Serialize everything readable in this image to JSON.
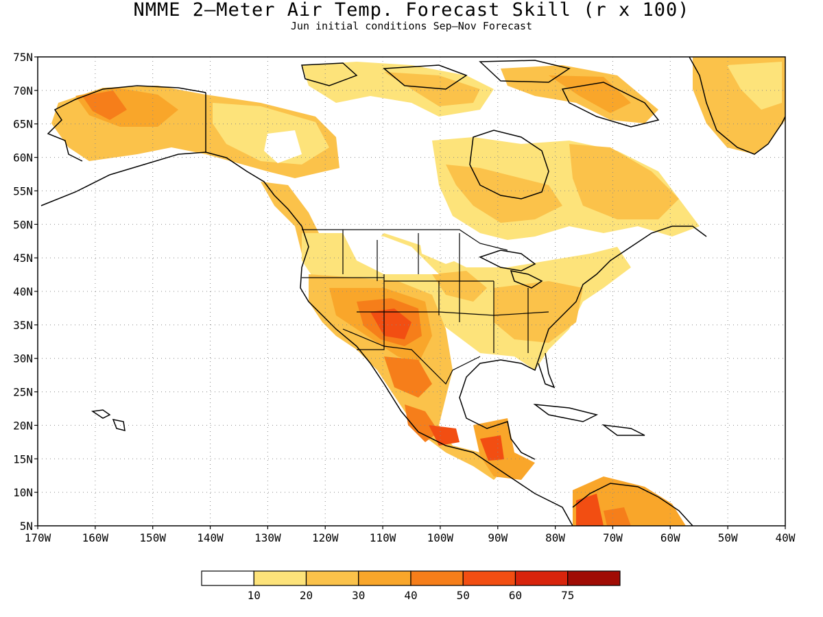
{
  "title": "NMME 2—Meter Air Temp. Forecast Skill (r x 100)",
  "subtitle": "Jun initial conditions  Sep—Nov Forecast",
  "axes": {
    "lat_labels": [
      "75N",
      "70N",
      "65N",
      "60N",
      "55N",
      "50N",
      "45N",
      "40N",
      "35N",
      "30N",
      "25N",
      "20N",
      "15N",
      "10N",
      "5N"
    ],
    "lon_labels": [
      "170W",
      "160W",
      "150W",
      "140W",
      "130W",
      "120W",
      "110W",
      "100W",
      "90W",
      "80W",
      "70W",
      "60W",
      "50W",
      "40W"
    ],
    "lat_range": [
      5,
      75
    ],
    "lon_range": [
      -170,
      -40
    ],
    "grid": "dotted"
  },
  "colorbar": {
    "levels": [
      "10",
      "20",
      "30",
      "40",
      "50",
      "60",
      "75"
    ],
    "colors": [
      "#ffffff",
      "#fde37a",
      "#fbc24a",
      "#f9a62a",
      "#f67e1a",
      "#f24e12",
      "#d8240c",
      "#a00c04"
    ]
  }
}
